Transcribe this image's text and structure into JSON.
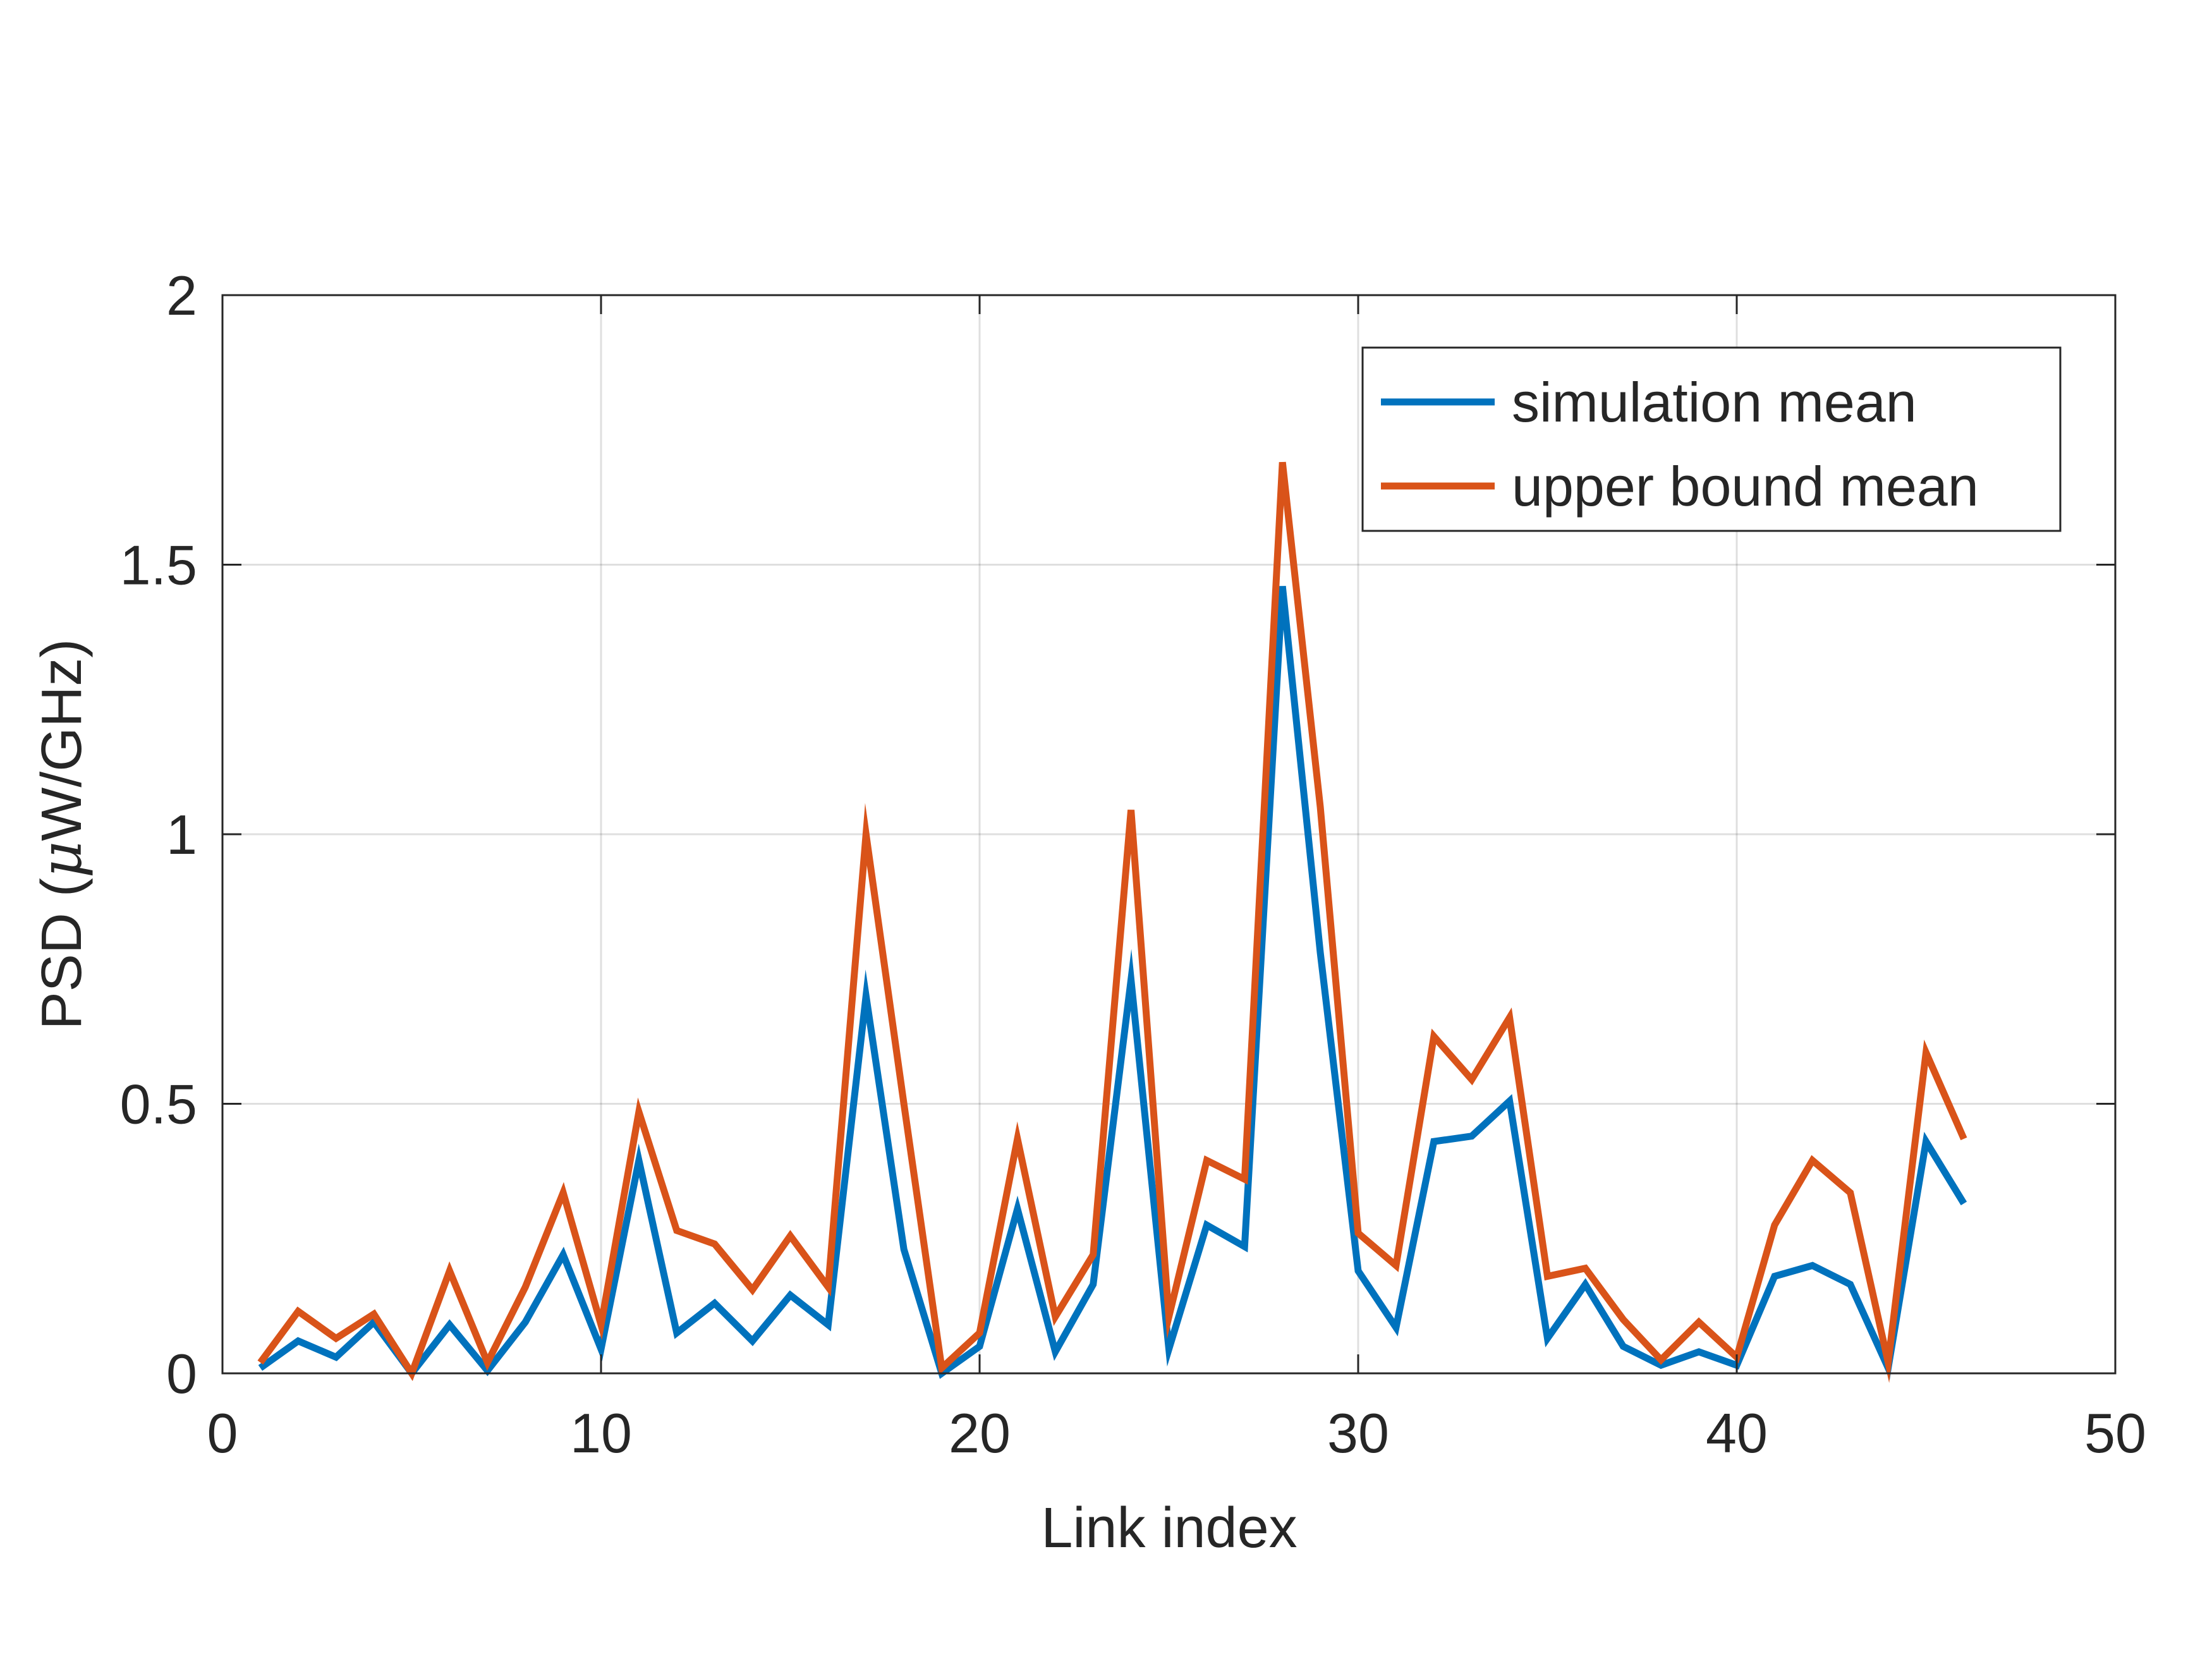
{
  "chart_data": {
    "type": "line",
    "title": "",
    "xlabel": "Link index",
    "ylabel": {
      "prefix": "PSD (",
      "mu": "μ",
      "suffix": "W/GHz)"
    },
    "xlim": [
      0,
      50
    ],
    "ylim": [
      0,
      2
    ],
    "x_ticks": [
      0,
      10,
      20,
      30,
      40,
      50
    ],
    "x_tick_labels": [
      "0",
      "10",
      "20",
      "30",
      "40",
      "50"
    ],
    "y_ticks": [
      0,
      0.5,
      1,
      1.5,
      2
    ],
    "y_tick_labels": [
      "0",
      "0.5",
      "1",
      "1.5",
      "2"
    ],
    "grid": true,
    "legend_position": "top-right",
    "x": [
      1,
      2,
      3,
      4,
      5,
      6,
      7,
      8,
      9,
      10,
      11,
      12,
      13,
      14,
      15,
      16,
      17,
      18,
      19,
      20,
      21,
      22,
      23,
      24,
      25,
      26,
      27,
      28,
      29,
      30,
      31,
      32,
      33,
      34,
      35,
      36,
      37,
      38,
      39,
      40,
      41,
      42,
      43,
      44,
      45,
      46
    ],
    "series": [
      {
        "name": "simulation mean",
        "color": "#0072BD",
        "values": [
          0.01,
          0.06,
          0.03,
          0.095,
          0.0,
          0.09,
          0.005,
          0.095,
          0.22,
          0.045,
          0.395,
          0.075,
          0.13,
          0.06,
          0.145,
          0.09,
          0.7,
          0.23,
          0.0,
          0.05,
          0.305,
          0.04,
          0.165,
          0.73,
          0.045,
          0.275,
          0.235,
          1.46,
          0.78,
          0.19,
          0.085,
          0.43,
          0.44,
          0.505,
          0.065,
          0.165,
          0.05,
          0.015,
          0.04,
          0.015,
          0.18,
          0.2,
          0.165,
          0.01,
          0.43,
          0.315
        ]
      },
      {
        "name": "upper bound mean",
        "color": "#D95319",
        "values": [
          0.02,
          0.115,
          0.065,
          0.11,
          0.0,
          0.19,
          0.02,
          0.16,
          0.335,
          0.09,
          0.485,
          0.265,
          0.24,
          0.155,
          0.255,
          0.16,
          1.0,
          0.5,
          0.01,
          0.075,
          0.435,
          0.105,
          0.22,
          1.045,
          0.105,
          0.395,
          0.36,
          1.69,
          1.05,
          0.26,
          0.2,
          0.625,
          0.545,
          0.66,
          0.18,
          0.195,
          0.1,
          0.025,
          0.095,
          0.03,
          0.275,
          0.395,
          0.335,
          0.02,
          0.595,
          0.435
        ]
      }
    ]
  }
}
